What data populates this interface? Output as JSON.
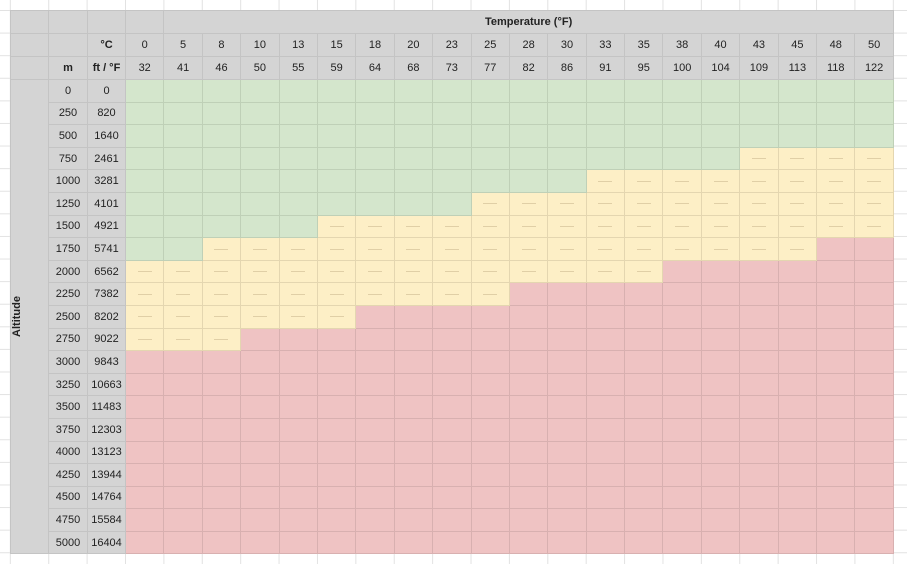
{
  "header": {
    "title": "Temperature (°F)",
    "celsius_label": "°C",
    "meters_label": "m",
    "feet_fahrenheit_label": "ft / °F",
    "row_axis_label": "Altitude"
  },
  "temperatures_c": [
    "0",
    "5",
    "8",
    "10",
    "13",
    "15",
    "18",
    "20",
    "23",
    "25",
    "28",
    "30",
    "33",
    "35",
    "38",
    "40",
    "43",
    "45",
    "48",
    "50"
  ],
  "temperatures_f": [
    "32",
    "41",
    "46",
    "50",
    "55",
    "59",
    "64",
    "68",
    "73",
    "77",
    "82",
    "86",
    "91",
    "95",
    "100",
    "104",
    "109",
    "113",
    "118",
    "122"
  ],
  "colors": {
    "g": "#d4e6cc",
    "y": "#fdefc6",
    "r": "#efc3c3",
    "header": "#d4d4d4"
  },
  "rows": [
    {
      "m": "0",
      "ft": "0",
      "status": "gggggggggggggggggggg"
    },
    {
      "m": "250",
      "ft": "820",
      "status": "gggggggggggggggggggg"
    },
    {
      "m": "500",
      "ft": "1640",
      "status": "gggggggggggggggggggg"
    },
    {
      "m": "750",
      "ft": "2461",
      "status": "ggggggggggggggggyyyy"
    },
    {
      "m": "1000",
      "ft": "3281",
      "status": "ggggggggggggyyyyyyyy"
    },
    {
      "m": "1250",
      "ft": "4101",
      "status": "gggggggggyyyyyyyyyyy"
    },
    {
      "m": "1500",
      "ft": "4921",
      "status": "gggggyyyyyyyyyyyyyyy"
    },
    {
      "m": "1750",
      "ft": "5741",
      "status": "ggyyyyyyyyyyyyyyyyrr"
    },
    {
      "m": "2000",
      "ft": "6562",
      "status": "yyyyyyyyyyyyyyrrrrrr"
    },
    {
      "m": "2250",
      "ft": "7382",
      "status": "yyyyyyyyyyrrrrrrrrrr"
    },
    {
      "m": "2500",
      "ft": "8202",
      "status": "yyyyyyrrrrrrrrrrrrrr"
    },
    {
      "m": "2750",
      "ft": "9022",
      "status": "yyyrrrrrrrrrrrrrrrrr"
    },
    {
      "m": "3000",
      "ft": "9843",
      "status": "rrrrrrrrrrrrrrrrrrrr"
    },
    {
      "m": "3250",
      "ft": "10663",
      "status": "rrrrrrrrrrrrrrrrrrrr"
    },
    {
      "m": "3500",
      "ft": "11483",
      "status": "rrrrrrrrrrrrrrrrrrrr"
    },
    {
      "m": "3750",
      "ft": "12303",
      "status": "rrrrrrrrrrrrrrrrrrrr"
    },
    {
      "m": "4000",
      "ft": "13123",
      "status": "rrrrrrrrrrrrrrrrrrrr"
    },
    {
      "m": "4250",
      "ft": "13944",
      "status": "rrrrrrrrrrrrrrrrrrrr"
    },
    {
      "m": "4500",
      "ft": "14764",
      "status": "rrrrrrrrrrrrrrrrrrrr"
    },
    {
      "m": "4750",
      "ft": "15584",
      "status": "rrrrrrrrrrrrrrrrrrrr"
    },
    {
      "m": "5000",
      "ft": "16404",
      "status": "rrrrrrrrrrrrrrrrrrrr"
    }
  ]
}
